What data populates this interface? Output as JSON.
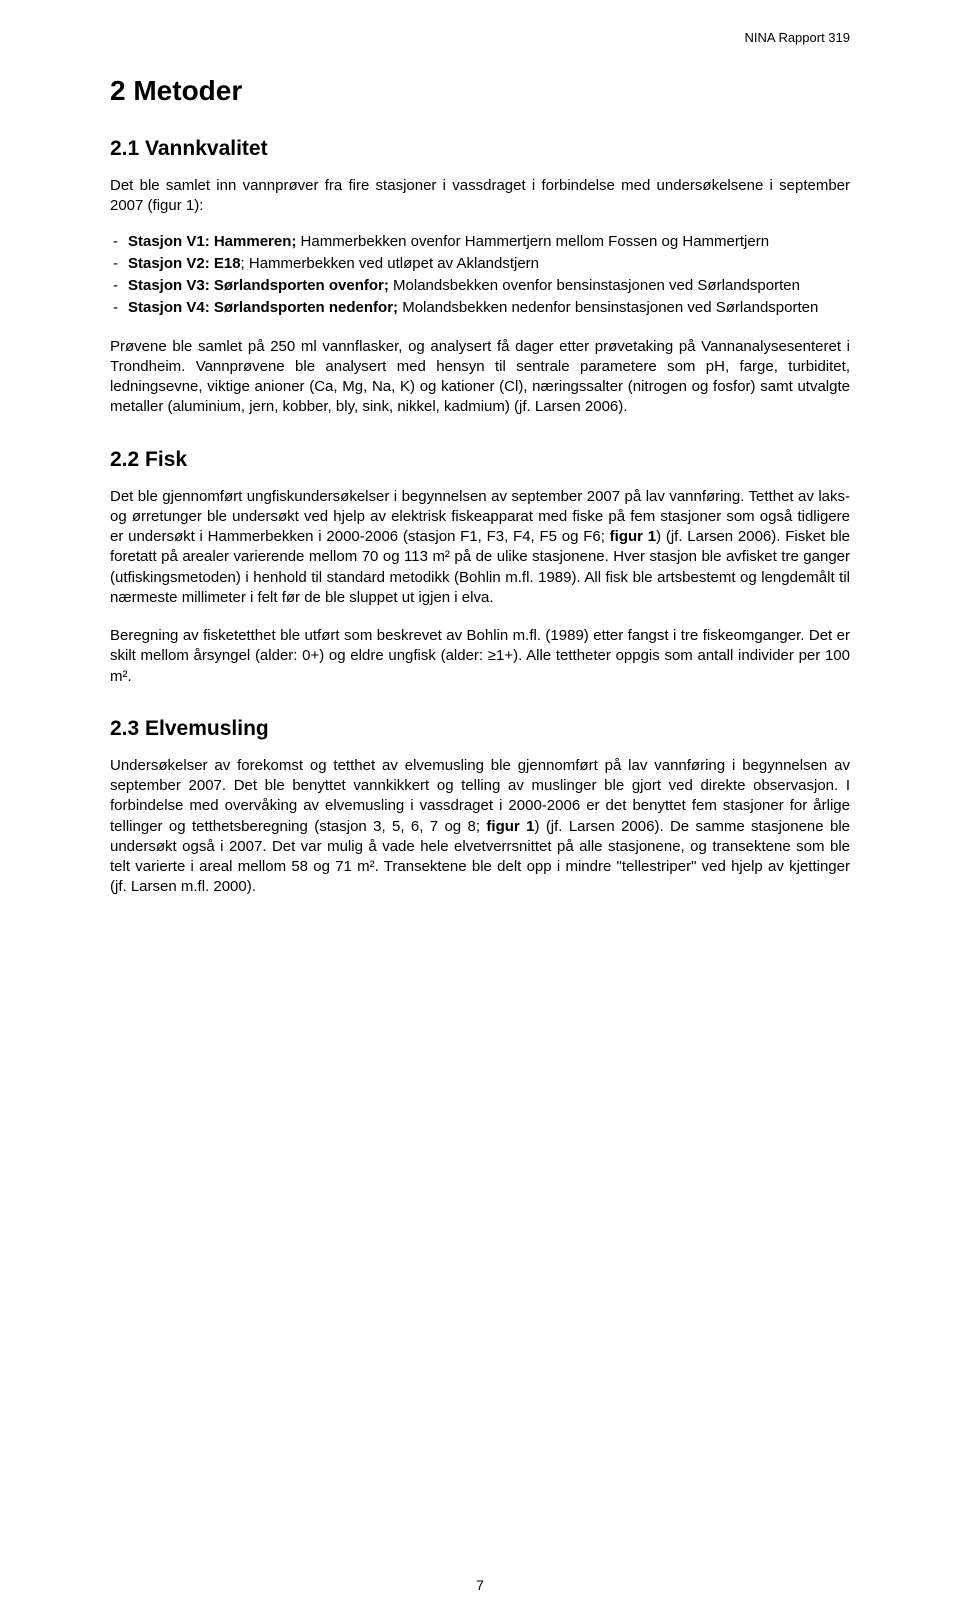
{
  "header": {
    "report_label": "NINA Rapport 319"
  },
  "section_title": "2 Metoder",
  "sections": {
    "s1": {
      "title": "2.1 Vannkvalitet",
      "intro": "Det ble samlet inn vannprøver fra fire stasjoner i vassdraget i forbindelse med undersøkelsene i september 2007 (figur 1):",
      "station1_label": "Stasjon V1: Hammeren;",
      "station1_desc": " Hammerbekken ovenfor Hammertjern mellom Fossen og Hammertjern",
      "station2_label": "Stasjon V2: E18",
      "station2_desc": "; Hammerbekken ved utløpet av Aklandstjern",
      "station3_label": "Stasjon V3: Sørlandsporten ovenfor;",
      "station3_desc": " Molandsbekken ovenfor bensinstasjonen ved Sørlandsporten",
      "station4_label": "Stasjon V4",
      "station4_label2": ": Sørlandsporten nedenfor;",
      "station4_desc": " Molandsbekken nedenfor bensinstasjonen ved Sørlandsporten",
      "para1": "Prøvene ble samlet på 250 ml vannflasker, og analysert få dager etter prøvetaking på Vannanalysesenteret i Trondheim. Vannprøvene ble analysert med hensyn til sentrale parametere som pH, farge, turbiditet, ledningsevne, viktige anioner (Ca, Mg, Na, K) og kationer (Cl), næringssalter (nitrogen og fosfor) samt utvalgte metaller (aluminium, jern, kobber, bly, sink, nikkel, kadmium) (jf. Larsen 2006)."
    },
    "s2": {
      "title": "2.2 Fisk",
      "para1": "Det ble gjennomført ungfiskundersøkelser i begynnelsen av september 2007 på lav vannføring. Tetthet av laks- og ørretunger ble undersøkt ved hjelp av elektrisk fiskeapparat med fiske på fem stasjoner som også tidligere er undersøkt i Hammerbekken i 2000-2006 (stasjon F1, F3, F4, F5 og F6; ",
      "para1_bold": "figur 1",
      "para1_cont": ") (jf. Larsen 2006). Fisket ble foretatt på arealer varierende mellom 70 og 113 m² på de ulike stasjonene. Hver stasjon ble avfisket tre ganger (utfiskingsmetoden) i henhold til standard metodikk (Bohlin m.fl. 1989). All fisk ble artsbestemt og lengdemålt til nærmeste millimeter i felt før de ble sluppet ut igjen i elva.",
      "para2": "Beregning av fisketetthet ble utført som beskrevet av Bohlin m.fl. (1989) etter fangst i tre fiskeomganger. Det er skilt mellom årsyngel (alder: 0+) og eldre ungfisk (alder: ≥1+). Alle tettheter oppgis som antall individer per 100 m²."
    },
    "s3": {
      "title": "2.3 Elvemusling",
      "para1a": "Undersøkelser av forekomst og tetthet av elvemusling ble gjennomført på lav vannføring i begynnelsen av september 2007. Det ble benyttet vannkikkert og telling av muslinger ble gjort ved direkte observasjon. I forbindelse med overvåking av elvemusling i vassdraget i 2000-2006 er det benyttet fem stasjoner for årlige tellinger og tetthetsberegning (stasjon 3, 5, 6, 7 og 8; ",
      "para1_bold": "figur 1",
      "para1b": ") (jf. Larsen 2006). De samme stasjonene ble undersøkt også i 2007. Det var mulig å vade hele elvetverrsnittet på alle stasjonene, og transektene som ble telt varierte i areal mellom 58 og 71 m². Transektene ble delt opp i mindre \"tellestriper\" ved hjelp av kjettinger (jf. Larsen m.fl. 2000)."
    }
  },
  "page_number": "7"
}
